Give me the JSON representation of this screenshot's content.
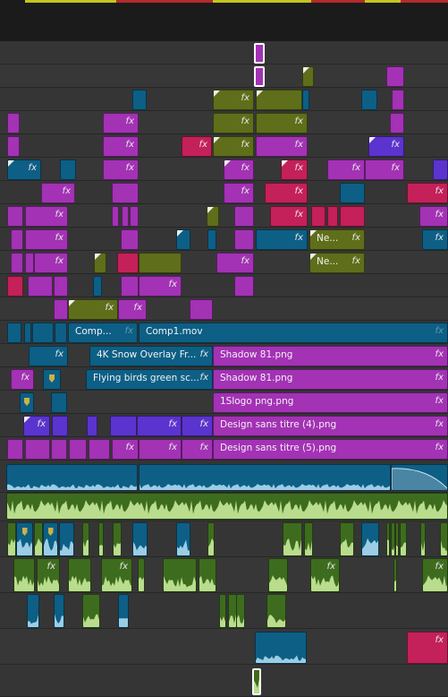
{
  "colors": {
    "magenta": "#a332b5",
    "olive": "#5f6e1a",
    "teal": "#0d5f85",
    "red": "#c4205a",
    "violet": "#5b34cf",
    "green": "#3e6c1f",
    "wave_green": "#b9dc8d",
    "wave_blue": "#9ccde4",
    "ruler_yellow": "#c2c61e",
    "ruler_red": "#b42a2a"
  },
  "clip_labels": {
    "comp_short": "Comp...",
    "comp_mov": "Comp1.mov",
    "snow": "4K Snow Overlay Fr...",
    "birds": "Flying birds green sc...",
    "shadow_a": "Shadow 81.png",
    "shadow_b": "Shadow 81.png",
    "logo": "1Slogo png.png",
    "design4": "Design sans titre (4).png",
    "design5": "Design sans titre (5).png",
    "ne_a": "Ne...",
    "ne_b": "Ne..."
  },
  "effect_label": "fx",
  "icons": {
    "keyframe": "keyframe-corner-icon",
    "marker": "clip-marker-icon",
    "fx": "fx-badge-icon"
  }
}
